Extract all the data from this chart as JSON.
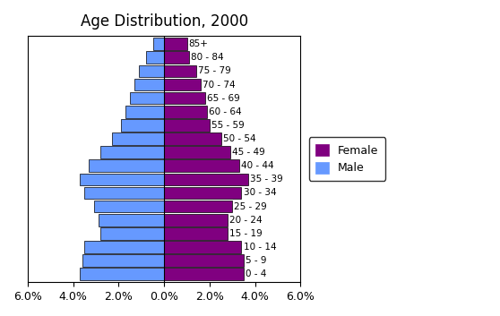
{
  "title": "Age Distribution, 2000",
  "age_groups": [
    "0 - 4",
    "5 - 9",
    "10 - 14",
    "15 - 19",
    "20 - 24",
    "25 - 29",
    "30 - 34",
    "35 - 39",
    "40 - 44",
    "45 - 49",
    "50 - 54",
    "55 - 59",
    "60 - 64",
    "65 - 69",
    "70 - 74",
    "75 - 79",
    "80 - 84",
    "85+"
  ],
  "male_pct": [
    3.7,
    3.6,
    3.5,
    2.8,
    2.9,
    3.1,
    3.5,
    3.7,
    3.3,
    2.8,
    2.3,
    1.9,
    1.7,
    1.5,
    1.3,
    1.1,
    0.8,
    0.5
  ],
  "female_pct": [
    3.5,
    3.5,
    3.4,
    2.8,
    2.8,
    3.0,
    3.4,
    3.7,
    3.3,
    2.9,
    2.5,
    2.0,
    1.9,
    1.8,
    1.6,
    1.4,
    1.1,
    1.0
  ],
  "male_color": "#6699FF",
  "female_color": "#800080",
  "bar_edge_color": "#000000",
  "xlim": 6.0,
  "xtick_labels": [
    "6.0%",
    "4.0%",
    "2.0%",
    "0.0%",
    "2.0%",
    "4.0%",
    "6.0%"
  ],
  "xtick_values": [
    -6.0,
    -4.0,
    -2.0,
    0.0,
    2.0,
    4.0,
    6.0
  ],
  "background_color": "#ffffff",
  "legend_female_label": "Female",
  "legend_male_label": "Male",
  "title_fontsize": 12,
  "label_fontsize": 7.5,
  "bar_height": 0.9
}
